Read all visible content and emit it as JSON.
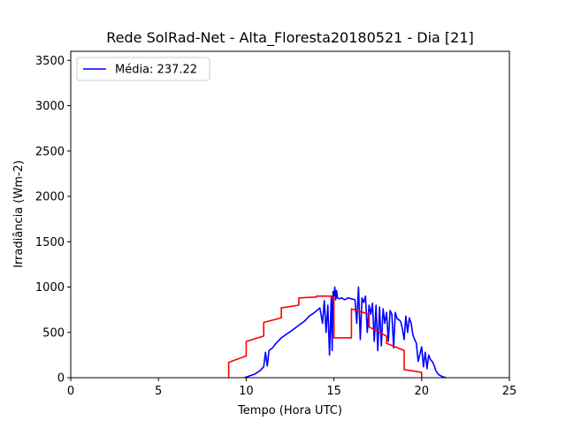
{
  "chart_data": {
    "type": "line",
    "title": "Rede SolRad-Net - Alta_Floresta20180521 - Dia [21]",
    "xlabel": "Tempo (Hora UTC)",
    "ylabel": "Irradiância (Wm-2)",
    "xlim": [
      0,
      25
    ],
    "ylim": [
      0,
      3600
    ],
    "xticks": [
      0,
      5,
      10,
      15,
      20,
      25
    ],
    "yticks": [
      0,
      500,
      1000,
      1500,
      2000,
      2500,
      3000,
      3500
    ],
    "grid": false,
    "legend": {
      "placement": "top-left",
      "entries": [
        "Média: 237.22"
      ]
    },
    "series": [
      {
        "name": "Média: 237.22",
        "color": "#0000ff",
        "x": [
          9.9,
          10.2,
          10.5,
          10.8,
          11.0,
          11.1,
          11.2,
          11.3,
          11.5,
          11.7,
          12.0,
          12.3,
          12.6,
          13.0,
          13.3,
          13.6,
          13.9,
          14.2,
          14.35,
          14.45,
          14.55,
          14.65,
          14.75,
          14.85,
          14.9,
          14.95,
          15.0,
          15.05,
          15.1,
          15.15,
          15.2,
          15.3,
          15.45,
          15.6,
          15.8,
          16.0,
          16.2,
          16.3,
          16.4,
          16.5,
          16.6,
          16.7,
          16.8,
          16.9,
          17.0,
          17.1,
          17.2,
          17.3,
          17.4,
          17.5,
          17.6,
          17.7,
          17.8,
          17.9,
          18.0,
          18.1,
          18.2,
          18.3,
          18.4,
          18.5,
          18.6,
          18.7,
          18.8,
          18.9,
          19.0,
          19.1,
          19.2,
          19.3,
          19.4,
          19.5,
          19.6,
          19.7,
          19.8,
          19.9,
          20.0,
          20.1,
          20.2,
          20.3,
          20.4,
          20.5,
          20.6,
          20.7,
          20.8,
          20.9,
          21.0,
          21.2,
          21.4
        ],
        "y": [
          0,
          20,
          40,
          80,
          120,
          280,
          130,
          300,
          330,
          380,
          440,
          480,
          520,
          580,
          620,
          680,
          720,
          770,
          600,
          850,
          500,
          800,
          250,
          900,
          300,
          950,
          900,
          1000,
          860,
          960,
          880,
          870,
          880,
          860,
          880,
          870,
          860,
          600,
          1000,
          420,
          880,
          830,
          900,
          500,
          800,
          700,
          820,
          400,
          800,
          300,
          780,
          350,
          760,
          600,
          720,
          400,
          740,
          700,
          330,
          720,
          650,
          640,
          620,
          540,
          420,
          680,
          500,
          660,
          600,
          470,
          420,
          380,
          180,
          260,
          340,
          120,
          280,
          100,
          250,
          200,
          180,
          140,
          80,
          50,
          30,
          10,
          0
        ]
      },
      {
        "name": "",
        "color": "#ff0000",
        "x": [
          9.0,
          9.0,
          10.0,
          10.0,
          11.0,
          11.0,
          12.0,
          12.0,
          13.0,
          13.0,
          14.0,
          14.0,
          14.9,
          14.9,
          15.0,
          15.0,
          16.0,
          16.0,
          17.0,
          17.0,
          18.0,
          18.0,
          19.0,
          19.0,
          20.0,
          20.0
        ],
        "y": [
          0,
          170,
          240,
          400,
          460,
          610,
          660,
          770,
          800,
          880,
          890,
          900,
          900,
          870,
          880,
          440,
          440,
          760,
          700,
          560,
          460,
          380,
          300,
          90,
          60,
          0
        ]
      }
    ]
  }
}
